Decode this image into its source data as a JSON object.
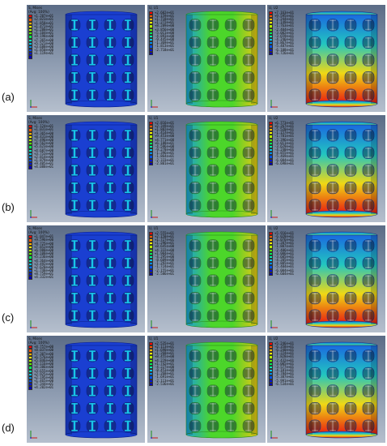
{
  "row_labels": [
    "(a)",
    "(b)",
    "(c)",
    "(d)"
  ],
  "legend_colors": [
    "#ff0000",
    "#ff5a00",
    "#ffb400",
    "#f0f000",
    "#b4f000",
    "#5af000",
    "#00e65a",
    "#00e6b4",
    "#00c8e6",
    "#008ce6",
    "#0050e6",
    "#0014d2",
    "#0000b4"
  ],
  "model_colors": {
    "mises": {
      "body": "#1a3fd1",
      "hot": "#18c6e8",
      "dark": "#0b1f8a"
    },
    "u1": {
      "body": "#4cd62a",
      "left": "#1aa0d8",
      "right": "#e8c614",
      "dark": "#2a8a18"
    },
    "u2": {
      "top": "#1a6ae0",
      "mid": "#22c6c0",
      "low": "#f0d814",
      "bottom": "#e81a10",
      "dark": "#10308a"
    }
  },
  "panels": [
    [
      {
        "name": "S, Mises",
        "avg": "(Avg: 100%)",
        "values": [
          "+1.207e+01",
          "+2.023e+01",
          "+1.858e+01",
          "+1.472e+01",
          "+1.288e+01",
          "+1.104e+01",
          "+9.198e+00",
          "+7.365e+00",
          "+5.521e+00",
          "+3.688e+00",
          "+1.850e+00",
          "+1.119e+01",
          ""
        ]
      },
      {
        "name": "U, U1",
        "avg": "",
        "values": [
          "+2.602e+01",
          "+2.159e+01",
          "+1.718e+01",
          "+1.272e+01",
          "+8.289e+00",
          "+3.856e+00",
          "-5.011e+00",
          "-4.893e+00",
          "-9.445e+00",
          "-1.369e+01",
          "-1.813e+01",
          "-2.718e+01",
          ""
        ]
      },
      {
        "name": "U, U2",
        "avg": "",
        "values": [
          "+7.163e+01",
          "+9.595e+01",
          "-2.244e+01",
          "-1.149e+01",
          "-1.763e+01",
          "-2.404e+01",
          "-3.002e+01",
          "-3.659e+01",
          "-4.246e+01",
          "-4.867e+01",
          "-5.487e+01",
          "-6.108e+01",
          "-6.726e+01"
        ]
      }
    ],
    [
      {
        "name": "S, Mises",
        "avg": "(Avg: 100%)",
        "values": [
          "+1.124e+01",
          "+1.031e+01",
          "+9.365e+00",
          "+8.431e+00",
          "+7.496e+00",
          "+6.562e+00",
          "+5.623e+00",
          "+4.687e+00",
          "+3.753e+00",
          "+2.814e+00",
          "+1.879e+00",
          "+9.405e+01",
          "+4.088e+01"
        ]
      },
      {
        "name": "U, U1",
        "avg": "",
        "values": [
          "+2.816e+01",
          "+2.349e+01",
          "+1.882e+01",
          "+1.414e+01",
          "+9.453e+00",
          "+4.771e+00",
          "+6.188e+01",
          "-4.596e+00",
          "-9.278e+00",
          "-1.396e+01",
          "-1.864e+01",
          "-2.333e+01",
          "-2.801e+01"
        ]
      },
      {
        "name": "U, U2",
        "avg": "",
        "values": [
          "+6.773e+01",
          "+6.267e+01",
          "-5.520e+01",
          "-1.157e+01",
          "-1.781e+01",
          "-2.396e+01",
          "-3.011e+01",
          "-3.629e+01",
          "-4.240e+01",
          "-4.855e+01",
          "-5.469e+01",
          "-6.084e+01",
          "-6.698e+01"
        ]
      }
    ],
    [
      {
        "name": "S, Mises",
        "avg": "(Avg: 100%)",
        "values": [
          "+1.047e+01",
          "+9.596e+00",
          "+8.725e+00",
          "+7.852e+00",
          "+6.980e+00",
          "+6.108e+00",
          "+5.236e+00",
          "+4.364e+00",
          "+3.492e+00",
          "+2.620e+00",
          "+1.748e+00",
          "+8.759e+01",
          "+4.332e+01"
        ]
      },
      {
        "name": "U, U1",
        "avg": "",
        "values": [
          "+2.555e+01",
          "+2.158e+01",
          "+1.727e+01",
          "+1.296e+01",
          "+8.645e+00",
          "+4.332e+00",
          "+1.904e+01",
          "-4.295e+00",
          "-8.609e+00",
          "-1.292e+01",
          "-1.724e+01",
          "-2.155e+01",
          "-2.586e+01"
        ]
      },
      {
        "name": "U, U2",
        "avg": "",
        "values": [
          "+5.916e+01",
          "-6.028e+01",
          "-6.076e+01",
          "-1.207e+01",
          "-1.807e+01",
          "-2.406e+01",
          "-3.006e+01",
          "-3.605e+01",
          "-4.205e+01",
          "-4.805e+01",
          "-5.404e+01",
          "-6.004e+01",
          "-6.604e+01"
        ]
      }
    ],
    [
      {
        "name": "S, Mises",
        "avg": "(Avg: 100%)",
        "values": [
          "+8.757e+00",
          "+8.037e+00",
          "+7.307e+00",
          "+6.576e+00",
          "+5.846e+00",
          "+5.116e+00",
          "+4.386e+00",
          "+3.655e+00",
          "+2.925e+00",
          "+2.195e+00",
          "+1.465e+00",
          "+7.344e+01",
          "+4.202e+01"
        ]
      },
      {
        "name": "U, U1",
        "avg": "",
        "values": [
          "+2.535e+01",
          "+2.113e+01",
          "+1.690e+01",
          "+1.268e+01",
          "+8.455e+00",
          "+4.229e+00",
          "+1.742e+01",
          "-4.227e+00",
          "-8.453e+00",
          "-1.268e+01",
          "-1.691e+01",
          "-2.113e+01",
          "-2.536e+01"
        ]
      },
      {
        "name": "U, U2",
        "avg": "",
        "values": [
          "+5.246e+01",
          "-6.358e+01",
          "-6.240e+01",
          "-1.224e+01",
          "-1.828e+01",
          "-2.432e+01",
          "-3.005e+01",
          "-3.577e+01",
          "-4.181e+01",
          "-4.784e+01",
          "-5.387e+01",
          "-5.991e+01",
          "-6.534e+01"
        ]
      }
    ]
  ]
}
